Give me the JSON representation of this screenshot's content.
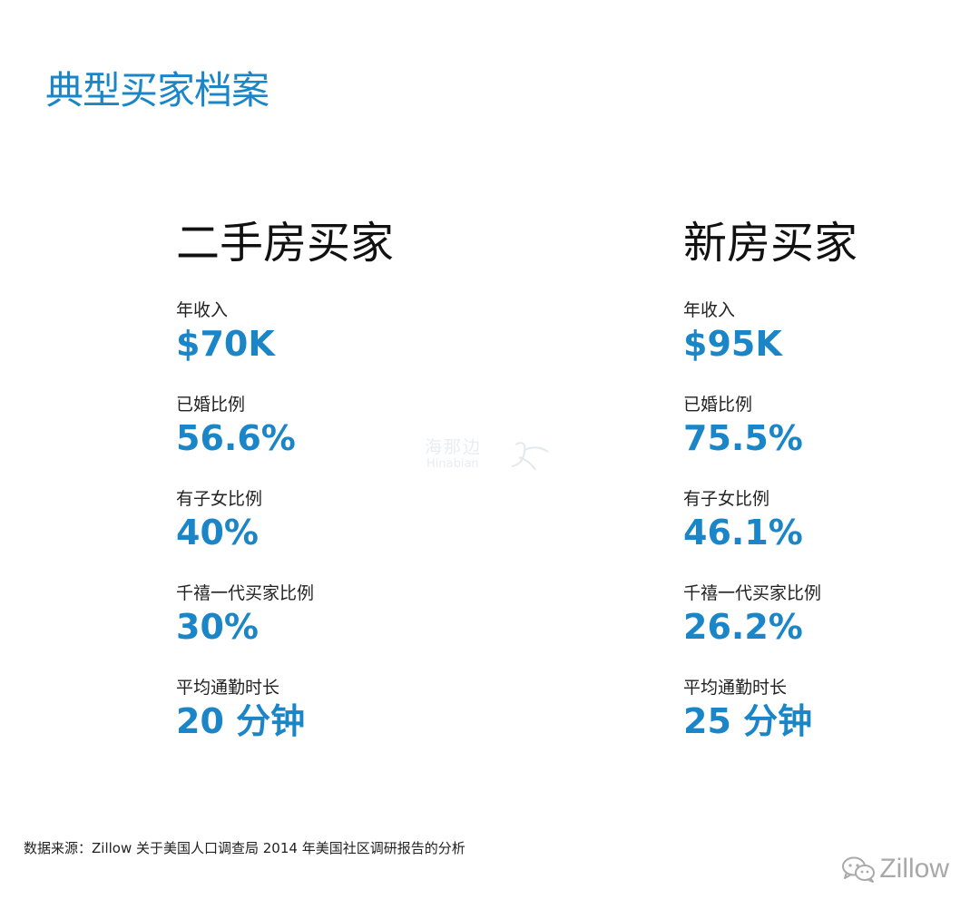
{
  "page": {
    "title": "典型买家档案"
  },
  "colors": {
    "accent": "#1a86c8",
    "text": "#111111",
    "muted": "#a8a8a8"
  },
  "columns": [
    {
      "title": "二手房买家",
      "metrics": [
        {
          "label": "年收入",
          "value": "$70K"
        },
        {
          "label": "已婚比例",
          "value": "56.6%"
        },
        {
          "label": "有子女比例",
          "value": "40%"
        },
        {
          "label": "千禧一代买家比例",
          "value": "30%"
        },
        {
          "label": "平均通勤时长",
          "value": "20 分钟"
        }
      ]
    },
    {
      "title": "新房买家",
      "metrics": [
        {
          "label": "年收入",
          "value": "$95K"
        },
        {
          "label": "已婚比例",
          "value": "75.5%"
        },
        {
          "label": "有子女比例",
          "value": "46.1%"
        },
        {
          "label": "千禧一代买家比例",
          "value": "26.2%"
        },
        {
          "label": "平均通勤时长",
          "value": "25 分钟"
        }
      ]
    }
  ],
  "watermark": {
    "text_cn": "海那边",
    "text_en": "Hinabian"
  },
  "footer": {
    "source": "数据来源：Zillow 关于美国人口调查局 2014 年美国社区调研报告的分析",
    "brand_icon": "wechat-icon",
    "brand_name": "Zillow"
  }
}
